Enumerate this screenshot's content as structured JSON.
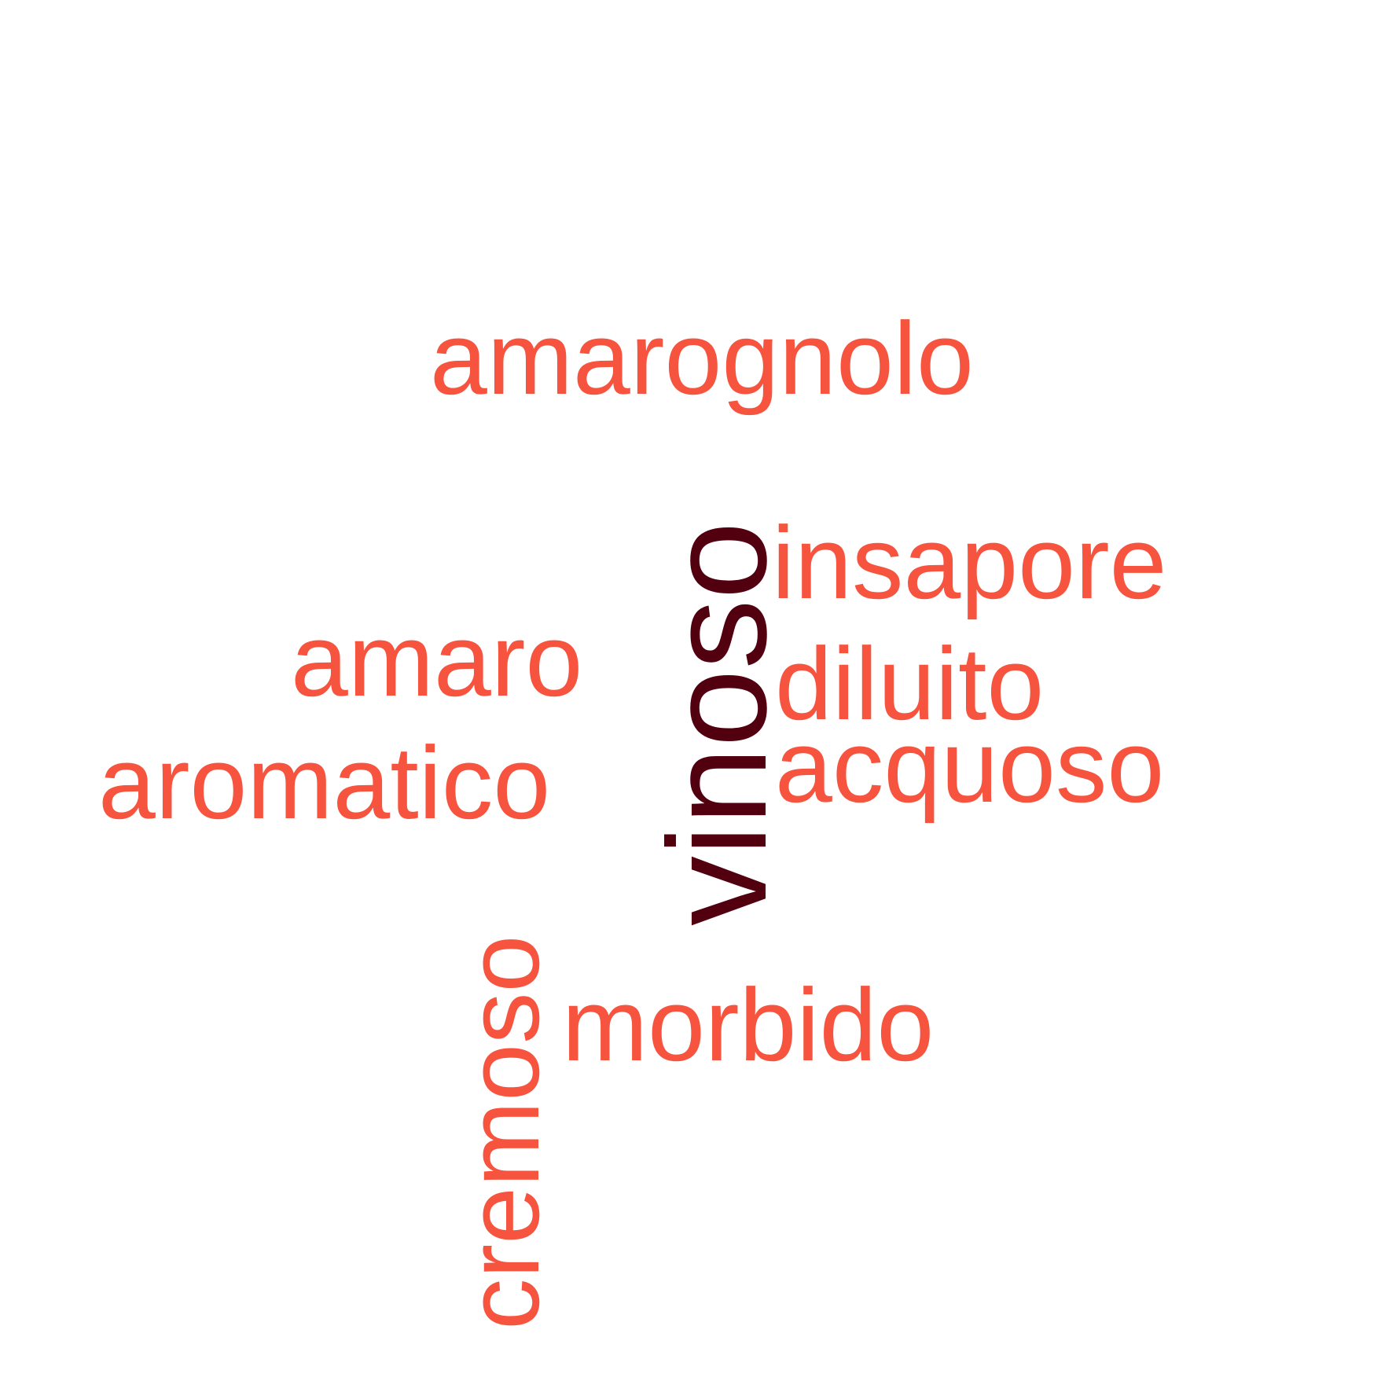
{
  "words": {
    "vinoso": "vinoso",
    "amarognolo": "amarognolo",
    "insapore": "insapore",
    "amaro": "amaro",
    "diluito": "diluito",
    "aromatico": "aromatico",
    "acquoso": "acquoso",
    "cremoso": "cremoso",
    "morbido": "morbido"
  },
  "colors": {
    "primary_word": "#520010",
    "secondary_words": "#f7543f",
    "background": "#ffffff"
  }
}
